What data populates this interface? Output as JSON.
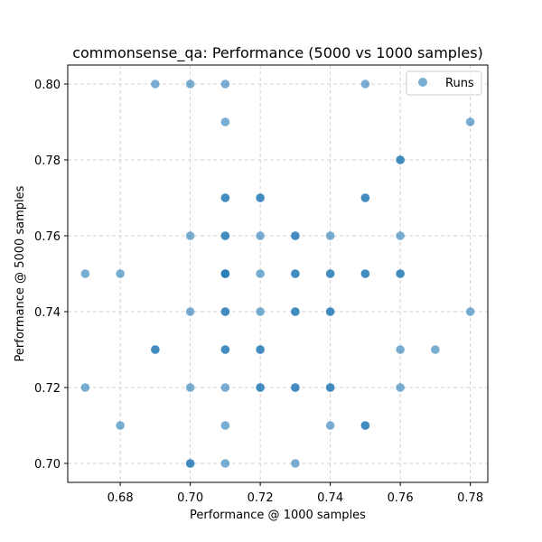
{
  "chart_data": {
    "type": "scatter",
    "title": "commonsense_qa: Performance (5000 vs 1000 samples)",
    "xlabel": "Performance @ 1000 samples",
    "ylabel": "Performance @ 5000 samples",
    "xlim": [
      0.665,
      0.785
    ],
    "ylim": [
      0.695,
      0.805
    ],
    "xticks": [
      0.68,
      0.7,
      0.72,
      0.74,
      0.76,
      0.78
    ],
    "xtick_labels": [
      "0.68",
      "0.70",
      "0.72",
      "0.74",
      "0.76",
      "0.78"
    ],
    "yticks": [
      0.7,
      0.72,
      0.74,
      0.76,
      0.78,
      0.8
    ],
    "ytick_labels": [
      "0.70",
      "0.72",
      "0.74",
      "0.76",
      "0.78",
      "0.80"
    ],
    "grid": true,
    "legend_position": "top-right",
    "series": [
      {
        "name": "Runs",
        "color": "#1f77b4",
        "points": [
          [
            0.69,
            0.8
          ],
          [
            0.7,
            0.8
          ],
          [
            0.71,
            0.8
          ],
          [
            0.75,
            0.8
          ],
          [
            0.71,
            0.79
          ],
          [
            0.78,
            0.79
          ],
          [
            0.76,
            0.78
          ],
          [
            0.76,
            0.78
          ],
          [
            0.71,
            0.77
          ],
          [
            0.71,
            0.77
          ],
          [
            0.72,
            0.77
          ],
          [
            0.72,
            0.77
          ],
          [
            0.75,
            0.77
          ],
          [
            0.75,
            0.77
          ],
          [
            0.7,
            0.76
          ],
          [
            0.71,
            0.76
          ],
          [
            0.71,
            0.76
          ],
          [
            0.72,
            0.76
          ],
          [
            0.73,
            0.76
          ],
          [
            0.73,
            0.76
          ],
          [
            0.74,
            0.76
          ],
          [
            0.76,
            0.76
          ],
          [
            0.67,
            0.75
          ],
          [
            0.68,
            0.75
          ],
          [
            0.71,
            0.75
          ],
          [
            0.71,
            0.75
          ],
          [
            0.71,
            0.75
          ],
          [
            0.72,
            0.75
          ],
          [
            0.73,
            0.75
          ],
          [
            0.73,
            0.75
          ],
          [
            0.74,
            0.75
          ],
          [
            0.74,
            0.75
          ],
          [
            0.75,
            0.75
          ],
          [
            0.75,
            0.75
          ],
          [
            0.76,
            0.75
          ],
          [
            0.76,
            0.75
          ],
          [
            0.7,
            0.74
          ],
          [
            0.71,
            0.74
          ],
          [
            0.71,
            0.74
          ],
          [
            0.72,
            0.74
          ],
          [
            0.73,
            0.74
          ],
          [
            0.73,
            0.74
          ],
          [
            0.74,
            0.74
          ],
          [
            0.74,
            0.74
          ],
          [
            0.78,
            0.74
          ],
          [
            0.69,
            0.73
          ],
          [
            0.69,
            0.73
          ],
          [
            0.71,
            0.73
          ],
          [
            0.71,
            0.73
          ],
          [
            0.72,
            0.73
          ],
          [
            0.72,
            0.73
          ],
          [
            0.76,
            0.73
          ],
          [
            0.77,
            0.73
          ],
          [
            0.67,
            0.72
          ],
          [
            0.7,
            0.72
          ],
          [
            0.71,
            0.72
          ],
          [
            0.72,
            0.72
          ],
          [
            0.72,
            0.72
          ],
          [
            0.73,
            0.72
          ],
          [
            0.73,
            0.72
          ],
          [
            0.74,
            0.72
          ],
          [
            0.74,
            0.72
          ],
          [
            0.76,
            0.72
          ],
          [
            0.68,
            0.71
          ],
          [
            0.71,
            0.71
          ],
          [
            0.74,
            0.71
          ],
          [
            0.75,
            0.71
          ],
          [
            0.75,
            0.71
          ],
          [
            0.7,
            0.7
          ],
          [
            0.7,
            0.7
          ],
          [
            0.71,
            0.7
          ],
          [
            0.73,
            0.7
          ]
        ]
      }
    ]
  }
}
